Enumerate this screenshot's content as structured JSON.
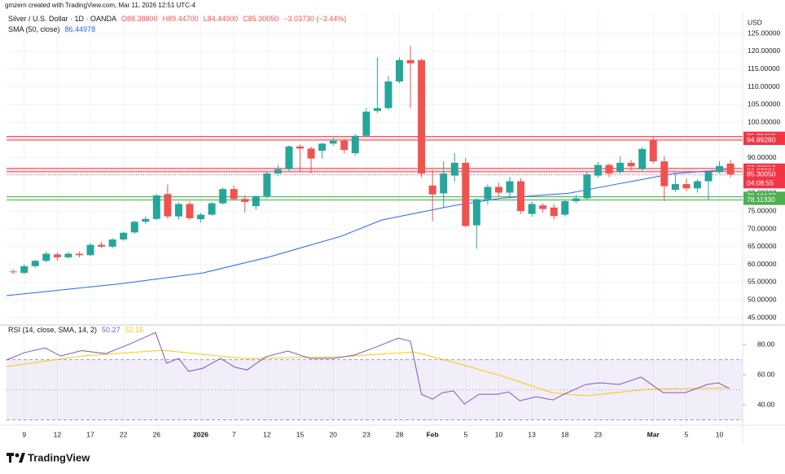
{
  "header": {
    "attribution": "gmzern created with TradingView.com, Mar 11, 2026 12:51 UTC-4"
  },
  "footer": {
    "brand": "TradingView"
  },
  "chart_data": {
    "type": "candlestick",
    "title": "Silver / U.S. Dollar · 1D · OANDA",
    "quote": [
      "O88.38800",
      "H89.44700",
      "L84.44900",
      "C85.30050",
      "−3.03730 (−3.44%)"
    ],
    "currency": "USD",
    "up_color": "#26a69a",
    "down_color": "#ef5350",
    "open": [
      58,
      57.6,
      59.5,
      61,
      62.8,
      62,
      63,
      62.6,
      65.5,
      65,
      67,
      69,
      72,
      72.8,
      79.8,
      73.5,
      77,
      72.7,
      74,
      77.2,
      81.2,
      78.4,
      76.4,
      79.2,
      85.6,
      86.8,
      93.2,
      92.6,
      92,
      94,
      94.8,
      91.3,
      96.2,
      103.2,
      104,
      111.5,
      117.5,
      117.5,
      82.2,
      80,
      85,
      88.6,
      71,
      78.3,
      81.8,
      80.2,
      83.4,
      74.2,
      76.6,
      76,
      74,
      77.8,
      78.6,
      85,
      88,
      86,
      88.6,
      86.8,
      95,
      89,
      81,
      82.6,
      81.4,
      83.4,
      86,
      88.388
    ],
    "high": [
      58.6,
      60,
      61.3,
      63.6,
      63.4,
      63.5,
      63.6,
      66,
      66.3,
      67.4,
      69.2,
      72.3,
      73.5,
      79.8,
      82.5,
      77.5,
      77.8,
      74.5,
      77.6,
      81.6,
      82.2,
      79.5,
      79.5,
      86,
      88,
      93.5,
      93.8,
      93.2,
      94.2,
      95.6,
      95.4,
      96.6,
      104,
      118.3,
      113,
      118.3,
      121.5,
      118,
      86.6,
      89,
      91.4,
      90,
      78.6,
      82.5,
      83,
      84.6,
      84.3,
      77.7,
      77.2,
      77,
      78.2,
      79.5,
      86,
      88.8,
      88.4,
      90.4,
      89.4,
      93,
      96.2,
      90.5,
      85.5,
      84.2,
      84,
      86.4,
      89.1,
      89.447
    ],
    "low": [
      57.3,
      57.2,
      59,
      60.5,
      61,
      61.6,
      62,
      62.3,
      64.6,
      64.5,
      66.6,
      68.6,
      71.3,
      72.5,
      72.8,
      72.6,
      72.5,
      71.8,
      73.7,
      76.8,
      78,
      74.6,
      75.4,
      78.6,
      84.8,
      86.2,
      86,
      85.6,
      89.8,
      93.5,
      91.2,
      90.6,
      95.8,
      102.6,
      103.5,
      111,
      104,
      84.5,
      72.2,
      76,
      83.3,
      70.4,
      64.4,
      76.8,
      79,
      79,
      74.2,
      73.4,
      74.6,
      72.6,
      73.5,
      77.2,
      78.2,
      84.4,
      84.6,
      85.5,
      86.5,
      86.2,
      88.4,
      77.8,
      80.4,
      80.6,
      80.2,
      78.2,
      85.5,
      84.449
    ],
    "close": [
      57.8,
      59.5,
      61,
      63,
      62,
      63,
      62.6,
      65.5,
      65,
      67,
      68.9,
      72,
      72.8,
      79.4,
      73.5,
      77,
      73,
      74,
      77.2,
      81.2,
      78.4,
      77.6,
      79.2,
      85.6,
      86.8,
      93.2,
      92.6,
      89.8,
      94,
      94.8,
      92.2,
      96.2,
      103,
      104,
      111.5,
      117.5,
      116.6,
      85.6,
      79.7,
      85.6,
      88.6,
      70.8,
      78.3,
      81.8,
      80.2,
      83.4,
      75,
      77,
      75.6,
      73.6,
      77.8,
      78.6,
      85.3,
      88,
      85.6,
      88.6,
      87.6,
      92.5,
      89,
      82,
      82.6,
      81.4,
      83.4,
      86,
      87.7,
      85.3005
    ],
    "ylim": [
      43.4,
      131
    ],
    "yticks": [
      {
        "value": 45,
        "label": "45.00000"
      },
      {
        "value": 50,
        "label": "50.00000"
      },
      {
        "value": 55,
        "label": "55.00000"
      },
      {
        "value": 60,
        "label": "60.00000"
      },
      {
        "value": 65,
        "label": "65.00000"
      },
      {
        "value": 70,
        "label": "70.00000"
      },
      {
        "value": 75,
        "label": "75.00000"
      },
      {
        "value": 80,
        "label": "80.00000"
      },
      {
        "value": 85,
        "label": "85.00000"
      },
      {
        "value": 90,
        "label": "90.00000"
      },
      {
        "value": 95,
        "label": "95.00000"
      },
      {
        "value": 100,
        "label": "100.00000"
      },
      {
        "value": 105,
        "label": "105.00000"
      },
      {
        "value": 110,
        "label": "110.00000"
      },
      {
        "value": 115,
        "label": "115.00000"
      },
      {
        "value": 120,
        "label": "120.00000"
      },
      {
        "value": 125,
        "label": "125.00000"
      }
    ],
    "xlim": [
      -0.6,
      66.1
    ],
    "xticks": [
      {
        "value": 1,
        "label": "9"
      },
      {
        "value": 4,
        "label": "12"
      },
      {
        "value": 7,
        "label": "17"
      },
      {
        "value": 10,
        "label": "22"
      },
      {
        "value": 13,
        "label": "26"
      },
      {
        "value": 17,
        "label": "2026"
      },
      {
        "value": 20,
        "label": "7"
      },
      {
        "value": 23,
        "label": "12"
      },
      {
        "value": 26,
        "label": "15"
      },
      {
        "value": 29,
        "label": "20"
      },
      {
        "value": 32,
        "label": "23"
      },
      {
        "value": 35,
        "label": "28"
      },
      {
        "value": 38,
        "label": "Feb"
      },
      {
        "value": 41,
        "label": "5"
      },
      {
        "value": 44,
        "label": "10"
      },
      {
        "value": 47,
        "label": "13"
      },
      {
        "value": 50,
        "label": "18"
      },
      {
        "value": 53,
        "label": "23"
      },
      {
        "value": 58,
        "label": "Mar"
      },
      {
        "value": 61,
        "label": "5"
      },
      {
        "value": 64,
        "label": "10"
      }
    ],
    "grid": true,
    "sma": {
      "name": "SMA (50, close)",
      "last": "86.44978",
      "color": "#2962ff",
      "x": [
        -0.6,
        9.9,
        17.2,
        23.1,
        29.7,
        33.4,
        36.3,
        40,
        44.4,
        50.3,
        54.7,
        59.9,
        64.9
      ],
      "values": [
        51.2,
        54.6,
        57.6,
        62,
        67.9,
        72.5,
        74.3,
        76.6,
        78.7,
        80,
        82.6,
        85.6,
        86.7
      ]
    },
    "levels": [
      {
        "value": 95.99469,
        "color": "#f23645"
      },
      {
        "value": 94.9928,
        "label": "94.99280",
        "color": "#f23645"
      },
      {
        "value": 87.02812,
        "color": "#f23645"
      },
      {
        "value": 86.07331,
        "color": "#f23645"
      },
      {
        "value": 79.10177,
        "color": "#4caf50"
      },
      {
        "value": 78.1133,
        "label": "78.11330",
        "color": "#4caf50"
      }
    ],
    "last_price": {
      "value": 85.3005,
      "label": "85.30050",
      "countdown": "04:08:55",
      "color": "#f23645"
    },
    "rsi": {
      "name": "RSI (14, close, SMA, 14, 2)",
      "last": 50.27,
      "sma_last": 52.16,
      "color": "#7e57c2",
      "sma_color": "#f9c80e",
      "x": [
        -0.6,
        1,
        2.9,
        4.3,
        6.2,
        8.4,
        10.6,
        12.9,
        13.9,
        15,
        15.9,
        17.2,
        18.8,
        20.1,
        21.2,
        22.9,
        24.9,
        26.9,
        29,
        30.9,
        32.9,
        34.9,
        36,
        37,
        38,
        38.9,
        39.9,
        40.9,
        42.2,
        43.9,
        44.9,
        45.9,
        47.4,
        48.9,
        49.9,
        51.9,
        53.2,
        54.9,
        56.9,
        58.9,
        60.9,
        62.9,
        63.9,
        64.9
      ],
      "values": [
        69.7,
        74.6,
        77.8,
        72.4,
        76,
        74,
        80.5,
        88,
        67.6,
        70.8,
        62.2,
        64.3,
        70.8,
        64.9,
        63.2,
        71.9,
        75.7,
        70.8,
        70.8,
        73,
        78.4,
        84.3,
        82.2,
        47,
        43.8,
        48.1,
        49.2,
        40.5,
        47,
        47,
        48.6,
        42.7,
        45.4,
        43.2,
        47,
        53.5,
        54.6,
        53.5,
        58.4,
        48.1,
        48.1,
        53.5,
        54.6,
        50.8
      ],
      "sma_x": [
        -0.6,
        6.2,
        13.5,
        20.9,
        29.7,
        36.3,
        40,
        44.4,
        48.8,
        51.8,
        57.6,
        64.9
      ],
      "sma_values": [
        65.4,
        72.4,
        76.2,
        70.8,
        71.9,
        75.1,
        68.1,
        58.9,
        48.1,
        46,
        50.3,
        51.4
      ],
      "ylim": [
        27.6,
        91.4
      ],
      "yticks": [
        {
          "value": 40,
          "label": "40.00"
        },
        {
          "value": 60,
          "label": "60.00"
        },
        {
          "value": 80,
          "label": "80.00"
        }
      ],
      "bands": [
        70,
        50,
        30
      ]
    }
  }
}
